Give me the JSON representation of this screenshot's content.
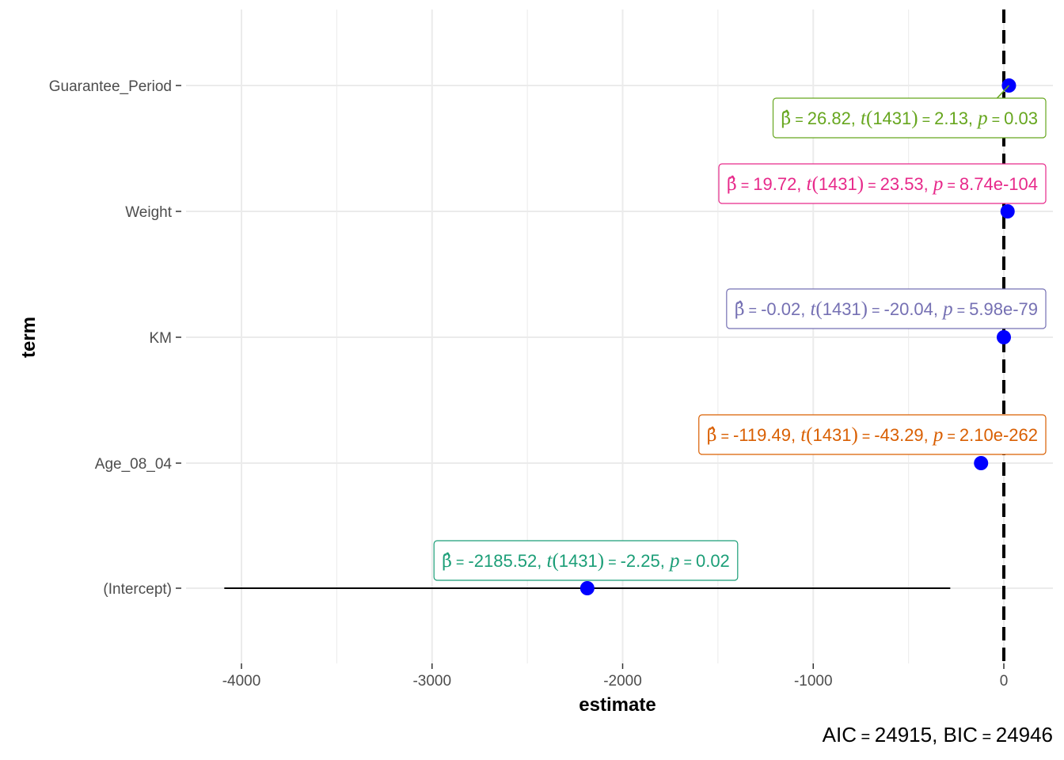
{
  "chart_data": {
    "type": "coefficient-plot",
    "xlabel": "estimate",
    "ylabel": "term",
    "xlim": [
      -4350,
      250
    ],
    "x_ticks": [
      -4000,
      -3000,
      -2000,
      -1000,
      0
    ],
    "x_tick_labels": [
      "-4000",
      "-3000",
      "-2000",
      "-1000",
      "0"
    ],
    "grid": true,
    "reference_line": {
      "x": 0,
      "style": "dashed"
    },
    "point_color": "#0000ff",
    "terms": [
      {
        "term": "Guarantee_Period",
        "estimate": 26.82,
        "ci": [
          2.1,
          51.5
        ],
        "color": "#66a61e",
        "label": {
          "beta": "26.82",
          "df": "1431",
          "t": "2.13",
          "p": "0.03"
        }
      },
      {
        "term": "Weight",
        "estimate": 19.72,
        "ci": [
          18.1,
          21.4
        ],
        "color": "#e7298a",
        "label": {
          "beta": "19.72",
          "df": "1431",
          "t": "23.53",
          "p": "8.74e-104"
        }
      },
      {
        "term": "KM",
        "estimate": -0.02,
        "ci": [
          -0.022,
          -0.018
        ],
        "color": "#7570b3",
        "label": {
          "beta": "-0.02",
          "df": "1431",
          "t": "-20.04",
          "p": "5.98e-79"
        }
      },
      {
        "term": "Age_08_04",
        "estimate": -119.49,
        "ci": [
          -124.9,
          -114.1
        ],
        "color": "#d95f02",
        "label": {
          "beta": "-119.49",
          "df": "1431",
          "t": "-43.29",
          "p": "2.10e-262"
        }
      },
      {
        "term": "(Intercept)",
        "estimate": -2185.52,
        "ci": [
          -4090,
          -281
        ],
        "color": "#1b9e77",
        "label": {
          "beta": "-2185.52",
          "df": "1431",
          "t": "-2.25",
          "p": "0.02"
        }
      }
    ],
    "caption": {
      "aic": "24915",
      "bic": "24946"
    }
  }
}
